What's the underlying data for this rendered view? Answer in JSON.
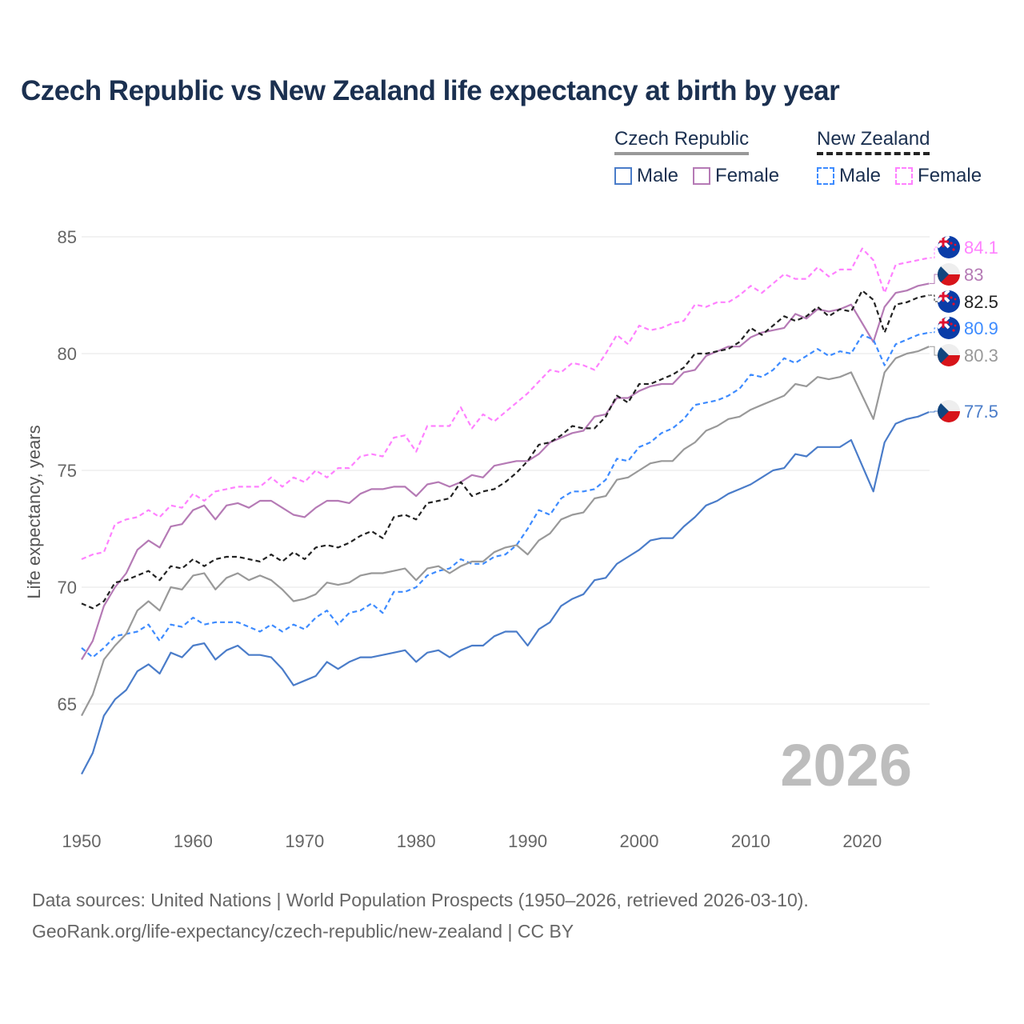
{
  "chart_data": {
    "type": "line",
    "title": "Czech Republic vs New Zealand life expectancy at birth by year",
    "ylabel": "Life expectancy, years",
    "xlabel": "",
    "xlim": [
      1950,
      2026
    ],
    "ylim": [
      61,
      86.5
    ],
    "yticks": [
      65,
      70,
      75,
      80,
      85
    ],
    "xticks": [
      1950,
      1960,
      1970,
      1980,
      1990,
      2000,
      2010,
      2020
    ],
    "grid": true,
    "year_watermark": "2026",
    "legend": {
      "groups": [
        {
          "label": "Czech Republic",
          "items": [
            "Male",
            "Female"
          ]
        },
        {
          "label": "New Zealand",
          "items": [
            "Male",
            "Female"
          ]
        }
      ],
      "placement": "top-right"
    },
    "x_start": 1950,
    "series": [
      {
        "name": "New Zealand Female",
        "country": "New Zealand",
        "color": "#ff80ff",
        "dashed": true,
        "end_label": "84.1",
        "values": [
          71.2,
          71.4,
          71.5,
          72.7,
          72.9,
          73.0,
          73.3,
          73.0,
          73.5,
          73.4,
          74.0,
          73.7,
          74.1,
          74.2,
          74.3,
          74.3,
          74.3,
          74.7,
          74.3,
          74.7,
          74.5,
          75.0,
          74.7,
          75.1,
          75.1,
          75.6,
          75.7,
          75.6,
          76.4,
          76.5,
          75.8,
          76.9,
          76.9,
          76.9,
          77.7,
          76.8,
          77.4,
          77.1,
          77.5,
          77.9,
          78.3,
          78.8,
          79.3,
          79.2,
          79.6,
          79.5,
          79.3,
          80.0,
          80.8,
          80.4,
          81.2,
          81.0,
          81.1,
          81.3,
          81.4,
          82.1,
          82.0,
          82.2,
          82.2,
          82.5,
          82.9,
          82.6,
          83.0,
          83.4,
          83.2,
          83.2,
          83.7,
          83.3,
          83.6,
          83.6,
          84.5,
          84.0,
          82.6,
          83.8,
          83.9,
          84.0,
          84.1
        ]
      },
      {
        "name": "Czech Republic Female",
        "country": "Czech Republic",
        "color": "#b57ab5",
        "dashed": false,
        "end_label": "83",
        "values": [
          66.9,
          67.7,
          69.2,
          70.0,
          70.6,
          71.6,
          72.0,
          71.7,
          72.6,
          72.7,
          73.3,
          73.5,
          72.9,
          73.5,
          73.6,
          73.4,
          73.7,
          73.7,
          73.4,
          73.1,
          73.0,
          73.4,
          73.7,
          73.7,
          73.6,
          74.0,
          74.2,
          74.2,
          74.3,
          74.3,
          73.9,
          74.4,
          74.5,
          74.3,
          74.5,
          74.8,
          74.7,
          75.2,
          75.3,
          75.4,
          75.4,
          75.7,
          76.2,
          76.4,
          76.6,
          76.7,
          77.3,
          77.4,
          78.1,
          78.1,
          78.4,
          78.6,
          78.7,
          78.7,
          79.2,
          79.3,
          79.9,
          80.1,
          80.3,
          80.3,
          80.7,
          80.9,
          81.0,
          81.1,
          81.7,
          81.5,
          81.9,
          81.8,
          81.9,
          82.1,
          81.3,
          80.5,
          82.0,
          82.6,
          82.7,
          82.9,
          83.0
        ]
      },
      {
        "name": "New Zealand",
        "country": "New Zealand",
        "color": "#222222",
        "dashed": true,
        "end_label": "82.5",
        "values": [
          69.3,
          69.1,
          69.4,
          70.2,
          70.3,
          70.5,
          70.7,
          70.3,
          70.9,
          70.8,
          71.2,
          70.9,
          71.2,
          71.3,
          71.3,
          71.2,
          71.1,
          71.4,
          71.1,
          71.5,
          71.2,
          71.7,
          71.8,
          71.7,
          71.9,
          72.2,
          72.4,
          72.1,
          73.0,
          73.1,
          72.9,
          73.6,
          73.7,
          73.8,
          74.5,
          73.9,
          74.1,
          74.2,
          74.5,
          74.9,
          75.4,
          76.1,
          76.2,
          76.5,
          76.9,
          76.8,
          76.8,
          77.3,
          78.2,
          77.9,
          78.7,
          78.7,
          78.9,
          79.1,
          79.4,
          80.0,
          80.0,
          80.1,
          80.2,
          80.5,
          81.1,
          80.8,
          81.2,
          81.6,
          81.4,
          81.6,
          82.0,
          81.6,
          81.9,
          81.8,
          82.7,
          82.3,
          80.9,
          82.1,
          82.2,
          82.4,
          82.5
        ]
      },
      {
        "name": "New Zealand Male",
        "country": "New Zealand",
        "color": "#3d8bff",
        "dashed": true,
        "end_label": "80.9",
        "values": [
          67.4,
          67.0,
          67.4,
          67.9,
          68.0,
          68.1,
          68.4,
          67.7,
          68.4,
          68.3,
          68.7,
          68.4,
          68.5,
          68.5,
          68.5,
          68.3,
          68.1,
          68.4,
          68.1,
          68.4,
          68.2,
          68.7,
          69.0,
          68.4,
          68.9,
          69.0,
          69.3,
          68.9,
          69.8,
          69.8,
          70.0,
          70.5,
          70.7,
          70.8,
          71.2,
          71.0,
          71.0,
          71.3,
          71.4,
          71.8,
          72.5,
          73.3,
          73.1,
          73.8,
          74.1,
          74.1,
          74.2,
          74.6,
          75.5,
          75.4,
          76.0,
          76.2,
          76.6,
          76.8,
          77.2,
          77.8,
          77.9,
          78.0,
          78.2,
          78.5,
          79.1,
          79.0,
          79.3,
          79.8,
          79.6,
          79.9,
          80.2,
          79.9,
          80.1,
          80.0,
          80.8,
          80.6,
          79.5,
          80.4,
          80.6,
          80.8,
          80.9
        ]
      },
      {
        "name": "Czech Republic",
        "country": "Czech Republic",
        "color": "#999999",
        "dashed": false,
        "end_label": "80.3",
        "values": [
          64.5,
          65.4,
          66.9,
          67.5,
          68.0,
          69.0,
          69.4,
          69.0,
          70.0,
          69.9,
          70.5,
          70.6,
          69.9,
          70.4,
          70.6,
          70.3,
          70.5,
          70.3,
          69.9,
          69.4,
          69.5,
          69.7,
          70.2,
          70.1,
          70.2,
          70.5,
          70.6,
          70.6,
          70.7,
          70.8,
          70.3,
          70.8,
          70.9,
          70.6,
          70.9,
          71.1,
          71.1,
          71.5,
          71.7,
          71.8,
          71.4,
          72.0,
          72.3,
          72.9,
          73.1,
          73.2,
          73.8,
          73.9,
          74.6,
          74.7,
          75.0,
          75.3,
          75.4,
          75.4,
          75.9,
          76.2,
          76.7,
          76.9,
          77.2,
          77.3,
          77.6,
          77.8,
          78.0,
          78.2,
          78.7,
          78.6,
          79.0,
          78.9,
          79.0,
          79.2,
          78.2,
          77.2,
          79.2,
          79.8,
          80.0,
          80.1,
          80.3
        ]
      },
      {
        "name": "Czech Republic Male",
        "country": "Czech Republic",
        "color": "#4a7cc9",
        "dashed": false,
        "end_label": "77.5",
        "values": [
          62.0,
          62.9,
          64.5,
          65.2,
          65.6,
          66.4,
          66.7,
          66.3,
          67.2,
          67.0,
          67.5,
          67.6,
          66.9,
          67.3,
          67.5,
          67.1,
          67.1,
          67.0,
          66.5,
          65.8,
          66.0,
          66.2,
          66.8,
          66.5,
          66.8,
          67.0,
          67.0,
          67.1,
          67.2,
          67.3,
          66.8,
          67.2,
          67.3,
          67.0,
          67.3,
          67.5,
          67.5,
          67.9,
          68.1,
          68.1,
          67.5,
          68.2,
          68.5,
          69.2,
          69.5,
          69.7,
          70.3,
          70.4,
          71.0,
          71.3,
          71.6,
          72.0,
          72.1,
          72.1,
          72.6,
          73.0,
          73.5,
          73.7,
          74.0,
          74.2,
          74.4,
          74.7,
          75.0,
          75.1,
          75.7,
          75.6,
          76.0,
          76.0,
          76.0,
          76.3,
          75.2,
          74.1,
          76.2,
          77.0,
          77.2,
          77.3,
          77.5
        ]
      }
    ]
  },
  "footer": {
    "line1": "Data sources: United Nations | World Population Prospects (1950–2026, retrieved 2026-03-10).",
    "line2": "GeoRank.org/life-expectancy/czech-republic/new-zealand | CC BY"
  }
}
